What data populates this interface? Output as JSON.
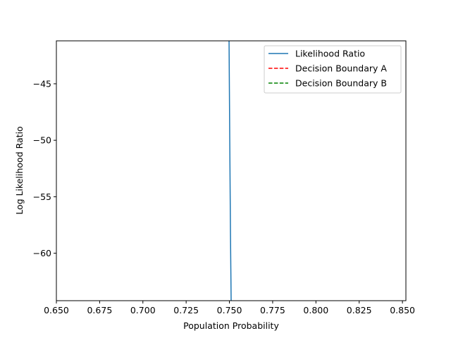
{
  "chart_data": {
    "type": "line",
    "xlabel": "Population Probability",
    "ylabel": "Log Likelihood Ratio",
    "xlim": [
      0.65,
      0.852
    ],
    "ylim": [
      -64.2,
      -41.2
    ],
    "x_ticks": [
      0.65,
      0.675,
      0.7,
      0.725,
      0.75,
      0.775,
      0.8,
      0.825,
      0.85
    ],
    "x_tick_labels": [
      "0.650",
      "0.675",
      "0.700",
      "0.725",
      "0.750",
      "0.775",
      "0.800",
      "0.825",
      "0.850"
    ],
    "y_ticks": [
      -45,
      -50,
      -55,
      -60
    ],
    "y_tick_labels": [
      "−45",
      "−50",
      "−55",
      "−60"
    ],
    "grid": false,
    "legend_position": "top-right",
    "series": [
      {
        "name": "Likelihood Ratio",
        "color": "#1f77b4",
        "style": "solid",
        "x": [
          0.7498,
          0.7502,
          0.7506,
          0.751
        ],
        "y": [
          -41.2,
          -50.0,
          -58.0,
          -64.2
        ]
      },
      {
        "name": "Decision Boundary A",
        "color": "#ff0000",
        "style": "dashed",
        "x": [],
        "y": []
      },
      {
        "name": "Decision Boundary B",
        "color": "#008000",
        "style": "dashed",
        "x": [],
        "y": []
      }
    ]
  }
}
